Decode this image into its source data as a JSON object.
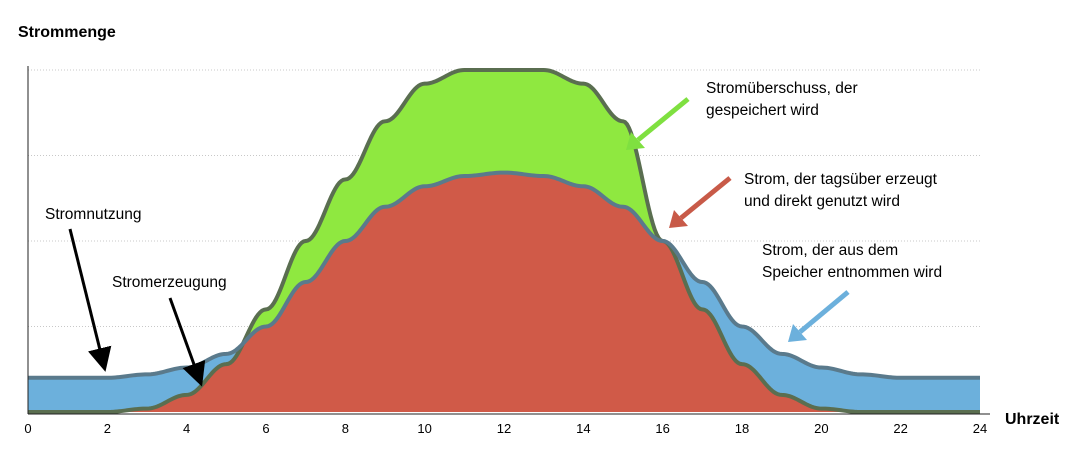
{
  "chart_data": {
    "type": "area",
    "ylabel": "Strommenge",
    "xlabel": "Uhrzeit",
    "xlim": [
      0,
      24
    ],
    "ylim": [
      0,
      1
    ],
    "grid": "horizontal dotted",
    "x_ticks": [
      "0",
      "2",
      "4",
      "6",
      "8",
      "10",
      "12",
      "14",
      "16",
      "18",
      "20",
      "22",
      "24"
    ],
    "colors": {
      "surplus": "#8fe840",
      "direct_use": "#d05a48",
      "storage_draw": "#6cb0dc",
      "production_line": "#5a6e50",
      "consumption_line": "#5a7a8c",
      "arrow_surplus": "#7fe040",
      "arrow_direct": "#c85a48",
      "arrow_storage": "#6cb0dc"
    },
    "series": [
      {
        "name": "Stromerzeugung",
        "x": [
          0,
          1,
          2,
          3,
          4,
          5,
          6,
          7,
          8,
          9,
          10,
          11,
          12,
          13,
          14,
          15,
          16,
          17,
          18,
          19,
          20,
          21,
          22,
          23,
          24
        ],
        "values": [
          0,
          0,
          0,
          0.01,
          0.05,
          0.14,
          0.3,
          0.5,
          0.68,
          0.85,
          0.96,
          1.0,
          1.0,
          1.0,
          0.96,
          0.85,
          0.5,
          0.3,
          0.14,
          0.05,
          0.01,
          0,
          0,
          0,
          0
        ]
      },
      {
        "name": "Stromnutzung",
        "x": [
          0,
          1,
          2,
          3,
          4,
          5,
          6,
          7,
          8,
          9,
          10,
          11,
          12,
          13,
          14,
          15,
          16,
          17,
          18,
          19,
          20,
          21,
          22,
          23,
          24
        ],
        "values": [
          0.1,
          0.1,
          0.1,
          0.11,
          0.13,
          0.17,
          0.25,
          0.38,
          0.5,
          0.6,
          0.66,
          0.69,
          0.7,
          0.69,
          0.66,
          0.6,
          0.5,
          0.38,
          0.25,
          0.17,
          0.13,
          0.11,
          0.1,
          0.1,
          0.1
        ]
      }
    ],
    "annotations": [
      {
        "text_lines": [
          "Stromnutzung"
        ],
        "target_x": 2.1,
        "target_series": "Stromnutzung"
      },
      {
        "text_lines": [
          "Stromerzeugung"
        ],
        "target_x": 4.5,
        "target_series": "Stromerzeugung"
      },
      {
        "text_lines": [
          "Stromüberschuss, der",
          "gespeichert wird"
        ],
        "region": "surplus"
      },
      {
        "text_lines": [
          "Strom, der tagsüber erzeugt",
          "und direkt genutzt wird"
        ],
        "region": "direct_use"
      },
      {
        "text_lines": [
          "Strom, der aus dem",
          "Speicher entnommen wird"
        ],
        "region": "storage_draw"
      }
    ]
  }
}
